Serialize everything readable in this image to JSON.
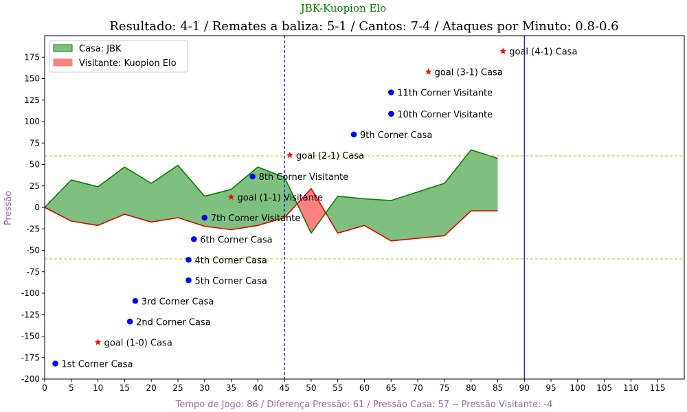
{
  "chart_data": {
    "type": "area",
    "suptitle": "JBK-Kuopion Elo",
    "title": "Resultado: 4-1 / Remates a baliza: 5-1 / Cantos: 7-4 / Ataques por Minuto: 0.8-0.6",
    "xlabel": "Tempo de Jogo: 86 / Diferença Pressão: 61 / Pressão Casa: 57 -- Pressão Visitante: -4",
    "ylabel": "Pressão",
    "xlim": [
      0,
      120
    ],
    "ylim": [
      -200,
      200
    ],
    "x_ticks": [
      0,
      5,
      10,
      15,
      20,
      25,
      30,
      35,
      40,
      45,
      50,
      55,
      60,
      65,
      70,
      75,
      80,
      85,
      90,
      95,
      100,
      105,
      110,
      115
    ],
    "y_ticks": [
      -200,
      -175,
      -150,
      -125,
      -100,
      -75,
      -50,
      -25,
      0,
      25,
      50,
      75,
      100,
      125,
      150,
      175
    ],
    "x_tick_labels": [
      "0",
      "5",
      "10",
      "15",
      "20",
      "25",
      "30",
      "35",
      "40",
      "45",
      "50",
      "55",
      "60",
      "65",
      "70",
      "75",
      "80",
      "85",
      "90",
      "95",
      "100",
      "105",
      "110",
      "115"
    ],
    "y_tick_labels": [
      "-200",
      "-175",
      "-150",
      "-125",
      "-100",
      "-75",
      "-50",
      "-25",
      "0",
      "25",
      "50",
      "75",
      "100",
      "125",
      "150",
      "175"
    ],
    "x": [
      0,
      5,
      10,
      15,
      20,
      25,
      30,
      35,
      40,
      45,
      50,
      55,
      60,
      65,
      70,
      75,
      80,
      85
    ],
    "series": [
      {
        "name": "Casa: JBK",
        "color": "#008000",
        "fill": "#7fbf7f",
        "values": [
          0,
          32,
          24,
          47,
          28,
          49,
          13,
          21,
          47,
          35,
          -30,
          13,
          10,
          8,
          18,
          28,
          67,
          57
        ]
      },
      {
        "name": "Visitante: Kuopion Elo",
        "color": "#dd0000",
        "fill": "#ff8080",
        "values": [
          0,
          -16,
          -21,
          -8,
          -17,
          -12,
          -22,
          -26,
          -21,
          -12,
          22,
          -30,
          -21,
          -39,
          -36,
          -33,
          -4,
          -4
        ]
      }
    ],
    "hlines": [
      {
        "y": 60,
        "color": "#bfbf00",
        "style": "dashed"
      },
      {
        "y": -60,
        "color": "#bfbf00",
        "style": "dashed"
      }
    ],
    "vlines": [
      {
        "x": 45,
        "color": "#0000cc",
        "style": "dashed"
      },
      {
        "x": 90,
        "color": "#0000cc",
        "style": "solid"
      }
    ],
    "annotations": [
      {
        "x": 2,
        "y": -182,
        "marker": "circle",
        "color": "#0000ff",
        "label": "1st Corner Casa"
      },
      {
        "x": 10,
        "y": -157,
        "marker": "star",
        "color": "#ff0000",
        "label": "goal (1-0) Casa"
      },
      {
        "x": 16,
        "y": -133,
        "marker": "circle",
        "color": "#0000ff",
        "label": "2nd Corner Casa"
      },
      {
        "x": 17,
        "y": -109,
        "marker": "circle",
        "color": "#0000ff",
        "label": "3rd Corner Casa"
      },
      {
        "x": 27,
        "y": -85,
        "marker": "circle",
        "color": "#0000ff",
        "label": "5th Corner Casa"
      },
      {
        "x": 27,
        "y": -61,
        "marker": "circle",
        "color": "#0000ff",
        "label": "4th Corner Casa"
      },
      {
        "x": 28,
        "y": -37,
        "marker": "circle",
        "color": "#0000ff",
        "label": "6th Corner Casa"
      },
      {
        "x": 30,
        "y": -12,
        "marker": "circle",
        "color": "#0000ff",
        "label": "7th Corner Visitante"
      },
      {
        "x": 35,
        "y": 12,
        "marker": "star",
        "color": "#ff0000",
        "label": "goal (1-1) Visitante"
      },
      {
        "x": 39,
        "y": 36,
        "marker": "circle",
        "color": "#0000ff",
        "label": "8th Corner Visitante"
      },
      {
        "x": 46,
        "y": 61,
        "marker": "star",
        "color": "#ff0000",
        "label": "goal (2-1) Casa"
      },
      {
        "x": 58,
        "y": 85,
        "marker": "circle",
        "color": "#0000ff",
        "label": "9th Corner Casa"
      },
      {
        "x": 65,
        "y": 109,
        "marker": "circle",
        "color": "#0000ff",
        "label": "10th Corner Visitante"
      },
      {
        "x": 65,
        "y": 134,
        "marker": "circle",
        "color": "#0000ff",
        "label": "11th Corner Visitante"
      },
      {
        "x": 72,
        "y": 158,
        "marker": "star",
        "color": "#ff0000",
        "label": "goal (3-1) Casa"
      },
      {
        "x": 86,
        "y": 182,
        "marker": "star",
        "color": "#ff0000",
        "label": "goal (4-1) Casa"
      }
    ],
    "legend": "top-left",
    "grid": false,
    "colors": {
      "suptitle": "#008000",
      "labels": "#9467bd"
    }
  }
}
